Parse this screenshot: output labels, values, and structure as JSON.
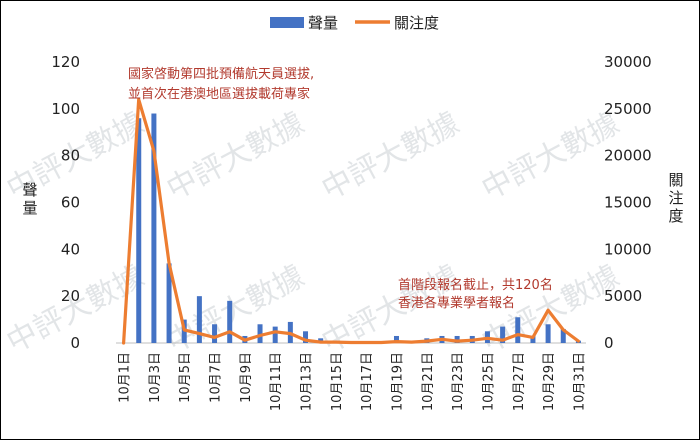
{
  "chart_data": {
    "type": "bar+line",
    "categories": [
      "10月1日",
      "10月2日",
      "10月3日",
      "10月4日",
      "10月5日",
      "10月6日",
      "10月7日",
      "10月8日",
      "10月9日",
      "10月10日",
      "10月11日",
      "10月12日",
      "10月13日",
      "10月14日",
      "10月15日",
      "10月16日",
      "10月17日",
      "10月18日",
      "10月19日",
      "10月20日",
      "10月21日",
      "10月22日",
      "10月23日",
      "10月24日",
      "10月25日",
      "10月26日",
      "10月27日",
      "10月28日",
      "10月29日",
      "10月30日",
      "10月31日"
    ],
    "x_tick_labels": [
      "10月1日",
      "10月3日",
      "10月5日",
      "10月7日",
      "10月9日",
      "10月11日",
      "10月13日",
      "10月15日",
      "10月17日",
      "10月19日",
      "10月21日",
      "10月23日",
      "10月25日",
      "10月27日",
      "10月29日",
      "10月31日"
    ],
    "series": [
      {
        "name": "聲量",
        "type": "bar",
        "axis": "left",
        "color": "#4472c4",
        "values": [
          0,
          96,
          98,
          34,
          10,
          20,
          8,
          18,
          3,
          8,
          7,
          9,
          5,
          2,
          0,
          0,
          0,
          0,
          3,
          1,
          2,
          3,
          3,
          3,
          5,
          7,
          11,
          3,
          8,
          6,
          1
        ]
      },
      {
        "name": "關注度",
        "type": "line",
        "axis": "right",
        "color": "#ed7d31",
        "values": [
          0,
          26000,
          20500,
          8500,
          1400,
          1000,
          600,
          1200,
          300,
          800,
          1200,
          1000,
          300,
          100,
          100,
          50,
          50,
          50,
          150,
          100,
          200,
          400,
          200,
          300,
          500,
          300,
          900,
          600,
          3500,
          1400,
          200
        ]
      }
    ],
    "y_left": {
      "label": "聲量",
      "min": 0,
      "max": 120,
      "ticks": [
        0,
        20,
        40,
        60,
        80,
        100,
        120
      ]
    },
    "y_right": {
      "label": "關注度",
      "min": 0,
      "max": 30000,
      "ticks": [
        0,
        5000,
        10000,
        15000,
        20000,
        25000,
        30000
      ]
    },
    "legend_position": "top-right",
    "grid": false,
    "annotations": [
      {
        "lines": [
          "國家啓動第四批預備航天員選拔,",
          "並首次在港澳地區選拔載荷專家"
        ]
      },
      {
        "lines": [
          "首階段報名截止，共120名",
          "香港各專業學者報名"
        ]
      }
    ],
    "watermark": "中評大數據"
  }
}
